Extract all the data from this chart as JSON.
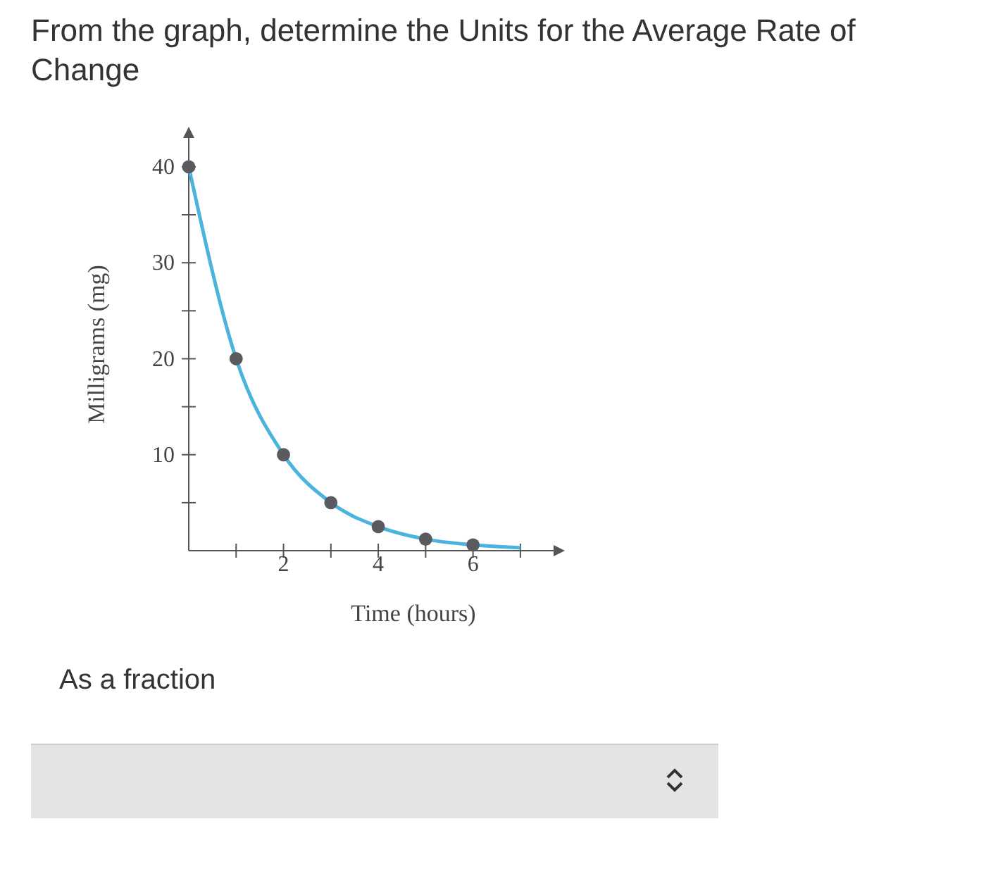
{
  "chart_data": {
    "type": "line",
    "title": "From the graph, determine the Units for the Average Rate of Change",
    "xlabel": "Time (hours)",
    "ylabel": "Milligrams (mg)",
    "annotations": [
      "As a fraction"
    ],
    "xlim": [
      0,
      7.7
    ],
    "ylim": [
      0,
      43
    ],
    "xticks": [
      {
        "value": 1,
        "label": null
      },
      2,
      {
        "value": 3,
        "label": null
      },
      4,
      {
        "value": 5,
        "label": null
      },
      6,
      {
        "value": 7,
        "label": null
      }
    ],
    "yticks": [
      {
        "value": 5,
        "label": null
      },
      10,
      {
        "value": 15,
        "label": null
      },
      20,
      {
        "value": 25,
        "label": null
      },
      30,
      {
        "value": 35,
        "label": null
      },
      40
    ],
    "grid": false,
    "series": [
      {
        "type": "line",
        "color": "#4ab4dc",
        "x": [
          0,
          1,
          2,
          3,
          4,
          5,
          6,
          7
        ],
        "values": [
          40,
          20,
          10,
          5,
          2.5,
          1.2,
          0.6,
          0.3
        ],
        "marker": "none"
      },
      {
        "type": "scatter",
        "color": "#5a5a60",
        "x": [
          0,
          1,
          2,
          3,
          4,
          5,
          6
        ],
        "values": [
          40,
          20,
          10,
          5,
          2.5,
          1.2,
          0.6
        ],
        "marker": "circle"
      }
    ]
  }
}
